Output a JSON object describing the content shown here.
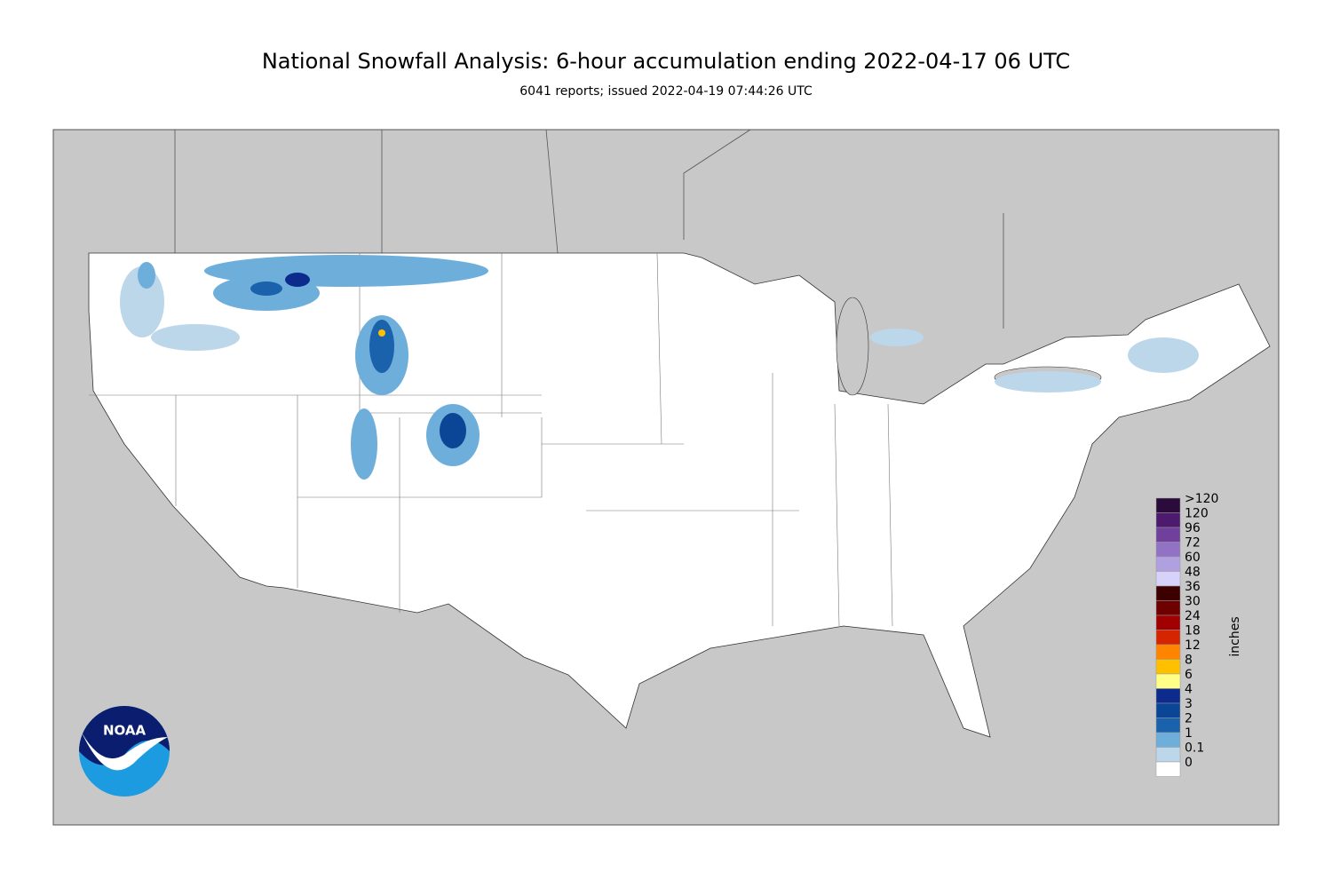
{
  "header": {
    "title": "National Snowfall Analysis: 6-hour accumulation ending 2022-04-17 06 UTC",
    "subtitle": "6041 reports; issued 2022-04-19 07:44:26 UTC"
  },
  "logo": {
    "text": "NOAA"
  },
  "legend": {
    "title": "inches",
    "bins": [
      {
        "label": ">120",
        "color": "#2b0b3b"
      },
      {
        "label": "120",
        "color": "#4d1b6d"
      },
      {
        "label": "96",
        "color": "#70409c"
      },
      {
        "label": "72",
        "color": "#9272c4"
      },
      {
        "label": "60",
        "color": "#b0a0e0"
      },
      {
        "label": "48",
        "color": "#d6d2fa"
      },
      {
        "label": "36",
        "color": "#3c0000"
      },
      {
        "label": "30",
        "color": "#6e0000"
      },
      {
        "label": "24",
        "color": "#a00000"
      },
      {
        "label": "18",
        "color": "#d42400"
      },
      {
        "label": "12",
        "color": "#ff8400"
      },
      {
        "label": "8",
        "color": "#ffc000"
      },
      {
        "label": "6",
        "color": "#ffff88"
      },
      {
        "label": "4",
        "color": "#0c2b8c"
      },
      {
        "label": "3",
        "color": "#0a4596"
      },
      {
        "label": "2",
        "color": "#1b62ad"
      },
      {
        "label": "1",
        "color": "#6eaedb"
      },
      {
        "label": "0.1",
        "color": "#bcd6ea"
      },
      {
        "label": "0",
        "color": "#ffffff"
      }
    ]
  }
}
